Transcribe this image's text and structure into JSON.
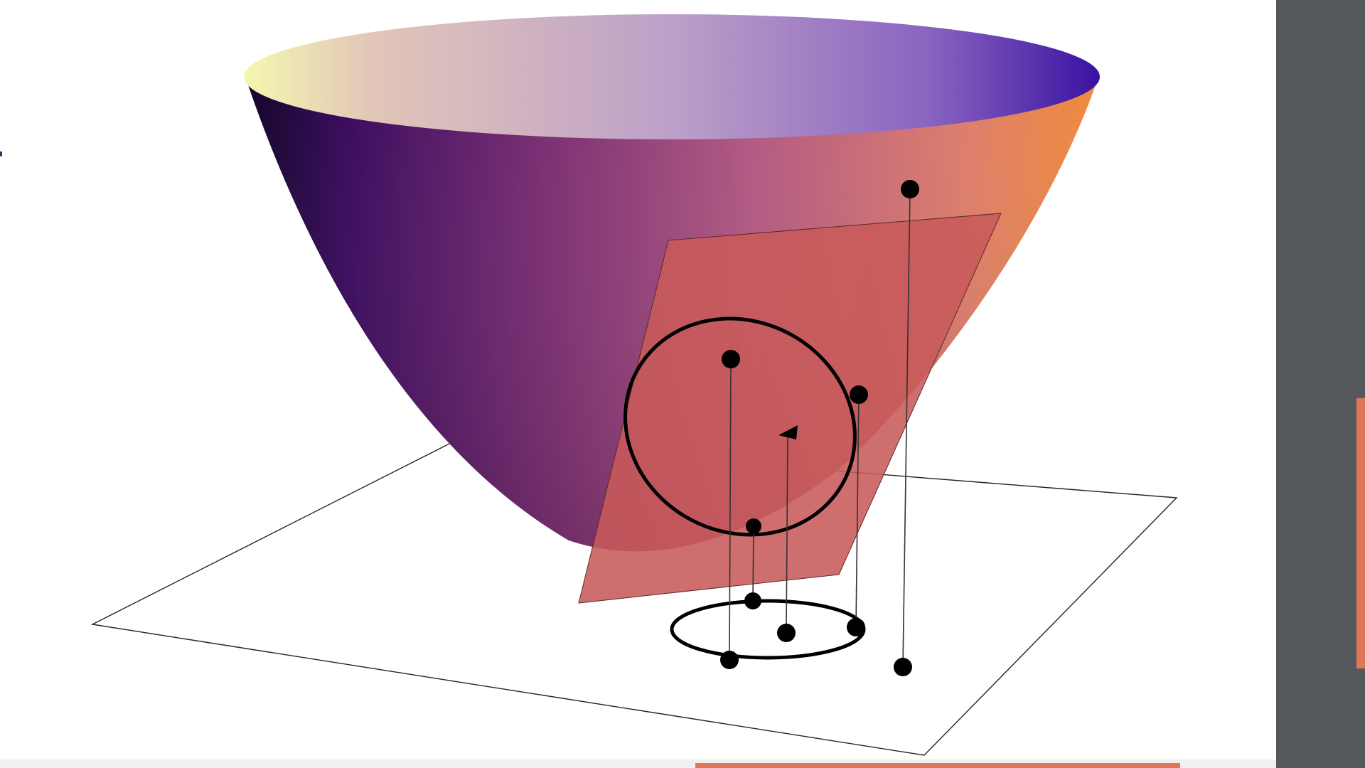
{
  "figure": {
    "surface": "paraboloid",
    "colors": {
      "paraboloid_rim_left": "#f2f5b0",
      "paraboloid_rim_mid": "#b99ac4",
      "paraboloid_rim_right": "#3d1aa0",
      "paraboloid_outer_left": "#2b0a52",
      "paraboloid_outer_mid": "#9b4c80",
      "paraboloid_outer_right": "#f08a3a",
      "plane_fill": "#c85a5a",
      "curve_color": "#000000"
    },
    "icons": [
      "point-marker"
    ]
  },
  "ui": {
    "right_panel_color": "#54585c",
    "accent_color": "#e0775a",
    "bottom_bar_color": "#f0f0f0"
  }
}
